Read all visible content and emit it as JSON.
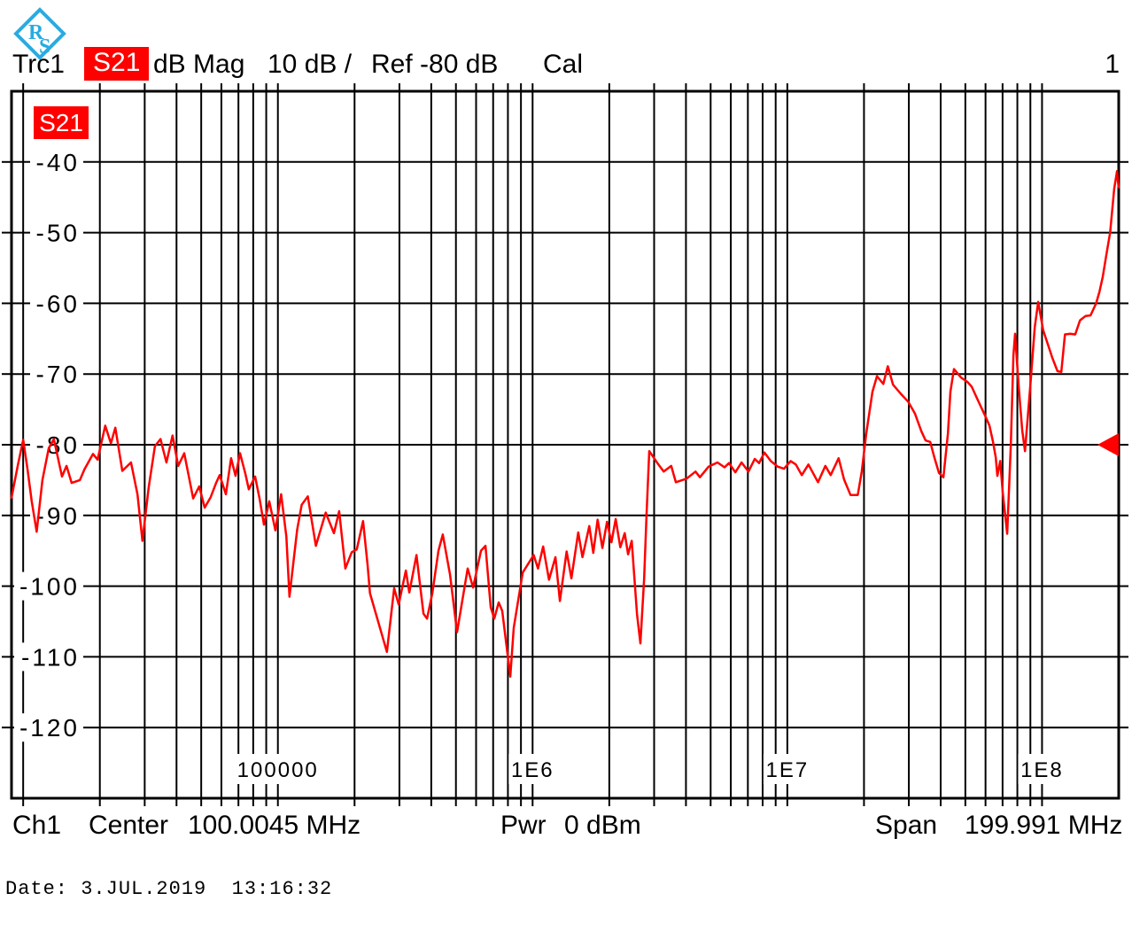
{
  "header": {
    "trace_name": "Trc1",
    "s_parameter": "S21",
    "format": "dB Mag",
    "scale_per_div": "10 dB /",
    "ref_level": "Ref -80 dB",
    "cal_status": "Cal",
    "ref_line_number": "1"
  },
  "plot": {
    "trace_badge": "S21",
    "colors": {
      "trace": "#ff0000",
      "grid": "#000000",
      "badge_bg": "#ff0000",
      "badge_text": "#ffffff",
      "logo_blue": "#29abe2",
      "marker": "#ff0000"
    }
  },
  "footer": {
    "channel": "Ch1",
    "center_label": "Center",
    "center_value": "100.0045 MHz",
    "pwr_label": "Pwr",
    "pwr_value": "0 dBm",
    "span_label": "Span",
    "span_value": "199.991 MHz",
    "date_line": "Date: 3.JUL.2019  13:16:32"
  },
  "chart_data": {
    "type": "line",
    "title": "Trc1 S21 dB Mag 10 dB / Ref -80 dB Cal",
    "x_scale": "log",
    "x_unit": "Hz",
    "xlim": [
      9000,
      200000000
    ],
    "ylim": [
      -130,
      -30
    ],
    "y_div_db": 10,
    "ref_level_db": -80,
    "grid": true,
    "y_ticks": [
      {
        "label": "-40",
        "value": -40
      },
      {
        "label": "-50",
        "value": -50
      },
      {
        "label": "-60",
        "value": -60
      },
      {
        "label": "-70",
        "value": -70
      },
      {
        "label": "-80",
        "value": -80
      },
      {
        "label": "-90",
        "value": -90
      },
      {
        "label": "-100",
        "value": -100
      },
      {
        "label": "-110",
        "value": -110
      },
      {
        "label": "-120",
        "value": -120
      }
    ],
    "x_ticks": [
      {
        "label": "100000",
        "value": 100000
      },
      {
        "label": "1E6",
        "value": 1000000
      },
      {
        "label": "1E7",
        "value": 10000000
      },
      {
        "label": "1E8",
        "value": 100000000
      }
    ],
    "ref_marker": {
      "db": -80,
      "side": "right",
      "shape": "left-triangle",
      "color": "#ff0000"
    },
    "series": [
      {
        "name": "Trc1 S21",
        "color": "#ff0000",
        "points": [
          [
            9000,
            -87.5
          ],
          [
            9520,
            -83
          ],
          [
            10000,
            -79.3
          ],
          [
            10400,
            -83.5
          ],
          [
            10800,
            -88
          ],
          [
            11300,
            -92.3
          ],
          [
            11900,
            -85
          ],
          [
            12600,
            -80.5
          ],
          [
            13200,
            -79.2
          ],
          [
            14200,
            -84.5
          ],
          [
            14800,
            -83
          ],
          [
            15500,
            -85.4
          ],
          [
            16700,
            -85
          ],
          [
            17400,
            -83.5
          ],
          [
            18800,
            -81.3
          ],
          [
            19600,
            -82.1
          ],
          [
            21000,
            -77.3
          ],
          [
            22100,
            -79.8
          ],
          [
            23000,
            -77.6
          ],
          [
            24500,
            -83.7
          ],
          [
            26500,
            -82.5
          ],
          [
            28100,
            -87
          ],
          [
            29400,
            -93.6
          ],
          [
            31100,
            -86
          ],
          [
            32900,
            -80.2
          ],
          [
            34600,
            -79.2
          ],
          [
            36500,
            -82.5
          ],
          [
            38600,
            -78.7
          ],
          [
            40600,
            -83
          ],
          [
            42900,
            -81.2
          ],
          [
            45000,
            -85
          ],
          [
            46500,
            -87.6
          ],
          [
            49100,
            -85.9
          ],
          [
            51600,
            -88.9
          ],
          [
            54500,
            -87.4
          ],
          [
            57200,
            -85.4
          ],
          [
            59100,
            -84.3
          ],
          [
            62500,
            -87
          ],
          [
            65500,
            -81.9
          ],
          [
            68200,
            -84.4
          ],
          [
            71000,
            -81.2
          ],
          [
            74500,
            -84.1
          ],
          [
            76900,
            -86.3
          ],
          [
            81400,
            -84.5
          ],
          [
            84700,
            -87.6
          ],
          [
            88200,
            -91.3
          ],
          [
            92500,
            -88
          ],
          [
            97800,
            -92.1
          ],
          [
            103000,
            -87
          ],
          [
            108000,
            -93
          ],
          [
            111000,
            -101.5
          ],
          [
            119000,
            -92
          ],
          [
            124000,
            -88.5
          ],
          [
            131000,
            -87.3
          ],
          [
            141000,
            -94.3
          ],
          [
            154000,
            -89.6
          ],
          [
            166000,
            -92.5
          ],
          [
            174000,
            -89.4
          ],
          [
            184000,
            -97.5
          ],
          [
            195000,
            -95.2
          ],
          [
            204000,
            -94.8
          ],
          [
            216000,
            -90.8
          ],
          [
            225000,
            -97
          ],
          [
            230000,
            -101
          ],
          [
            268000,
            -109.3
          ],
          [
            286000,
            -100.3
          ],
          [
            298000,
            -102.6
          ],
          [
            318000,
            -97.8
          ],
          [
            328000,
            -100.9
          ],
          [
            350000,
            -95.6
          ],
          [
            373000,
            -103.9
          ],
          [
            385000,
            -104.6
          ],
          [
            404000,
            -101
          ],
          [
            427000,
            -95
          ],
          [
            444000,
            -92.7
          ],
          [
            474000,
            -98.4
          ],
          [
            505000,
            -106.5
          ],
          [
            556000,
            -97.5
          ],
          [
            584000,
            -100.2
          ],
          [
            627000,
            -95
          ],
          [
            653000,
            -94.3
          ],
          [
            685000,
            -103
          ],
          [
            707000,
            -104.6
          ],
          [
            736000,
            -102.3
          ],
          [
            760000,
            -103.5
          ],
          [
            817000,
            -112.8
          ],
          [
            843000,
            -105.9
          ],
          [
            914000,
            -98.1
          ],
          [
            1010000,
            -95.6
          ],
          [
            1050000,
            -97.5
          ],
          [
            1100000,
            -94.4
          ],
          [
            1160000,
            -99.1
          ],
          [
            1230000,
            -95.9
          ],
          [
            1280000,
            -102.1
          ],
          [
            1360000,
            -95.1
          ],
          [
            1420000,
            -98.9
          ],
          [
            1510000,
            -92.4
          ],
          [
            1570000,
            -95.9
          ],
          [
            1670000,
            -91.5
          ],
          [
            1730000,
            -95.3
          ],
          [
            1800000,
            -90.6
          ],
          [
            1880000,
            -94.6
          ],
          [
            1960000,
            -90.9
          ],
          [
            2040000,
            -93.8
          ],
          [
            2120000,
            -90.5
          ],
          [
            2210000,
            -94.5
          ],
          [
            2300000,
            -92.5
          ],
          [
            2370000,
            -95.5
          ],
          [
            2450000,
            -93.6
          ],
          [
            2570000,
            -104
          ],
          [
            2650000,
            -108.1
          ],
          [
            2740000,
            -99
          ],
          [
            2800000,
            -90
          ],
          [
            2870000,
            -80.9
          ],
          [
            3090000,
            -82.6
          ],
          [
            3270000,
            -83.8
          ],
          [
            3500000,
            -83
          ],
          [
            3650000,
            -85.3
          ],
          [
            4020000,
            -84.8
          ],
          [
            4360000,
            -83.8
          ],
          [
            4540000,
            -84.6
          ],
          [
            4910000,
            -83.1
          ],
          [
            5320000,
            -82.5
          ],
          [
            5670000,
            -83.2
          ],
          [
            5900000,
            -82.6
          ],
          [
            6250000,
            -83.9
          ],
          [
            6610000,
            -82.5
          ],
          [
            7040000,
            -83.8
          ],
          [
            7450000,
            -82
          ],
          [
            7750000,
            -82.6
          ],
          [
            8130000,
            -81.1
          ],
          [
            8610000,
            -82.3
          ],
          [
            9170000,
            -83.1
          ],
          [
            9700000,
            -83.4
          ],
          [
            10300000,
            -82.3
          ],
          [
            10800000,
            -82.8
          ],
          [
            11400000,
            -84.3
          ],
          [
            12100000,
            -82.8
          ],
          [
            13200000,
            -85.3
          ],
          [
            14100000,
            -83
          ],
          [
            14800000,
            -84.3
          ],
          [
            15900000,
            -81.9
          ],
          [
            16700000,
            -84.9
          ],
          [
            17700000,
            -87.1
          ],
          [
            18900000,
            -87.1
          ],
          [
            19600000,
            -83.8
          ],
          [
            20400000,
            -78.5
          ],
          [
            21600000,
            -72.5
          ],
          [
            22500000,
            -70.3
          ],
          [
            23800000,
            -71.4
          ],
          [
            24800000,
            -68.9
          ],
          [
            26000000,
            -71.5
          ],
          [
            27900000,
            -72.8
          ],
          [
            29800000,
            -73.9
          ],
          [
            31700000,
            -75.6
          ],
          [
            33600000,
            -78.1
          ],
          [
            34900000,
            -79.4
          ],
          [
            36400000,
            -79.6
          ],
          [
            37800000,
            -81.8
          ],
          [
            39400000,
            -84
          ],
          [
            41000000,
            -84.6
          ],
          [
            42700000,
            -78.4
          ],
          [
            43700000,
            -72.5
          ],
          [
            45100000,
            -69.3
          ],
          [
            48100000,
            -70.5
          ],
          [
            50900000,
            -71.1
          ],
          [
            53000000,
            -71.8
          ],
          [
            56500000,
            -74
          ],
          [
            59800000,
            -75.9
          ],
          [
            62200000,
            -77.3
          ],
          [
            64200000,
            -79.6
          ],
          [
            65800000,
            -81.8
          ],
          [
            66800000,
            -84.4
          ],
          [
            68500000,
            -82.3
          ],
          [
            70100000,
            -86.8
          ],
          [
            73000000,
            -92.6
          ],
          [
            75400000,
            -80
          ],
          [
            77200000,
            -67.4
          ],
          [
            78400000,
            -64.3
          ],
          [
            81000000,
            -71.8
          ],
          [
            83600000,
            -78
          ],
          [
            85700000,
            -80.9
          ],
          [
            89900000,
            -71.8
          ],
          [
            93600000,
            -63.4
          ],
          [
            96600000,
            -59.8
          ],
          [
            101000000,
            -63.8
          ],
          [
            105000000,
            -65.6
          ],
          [
            110000000,
            -67.8
          ],
          [
            115000000,
            -69.6
          ],
          [
            119000000,
            -69.7
          ],
          [
            123000000,
            -64.4
          ],
          [
            129000000,
            -64.3
          ],
          [
            135000000,
            -64.4
          ],
          [
            141000000,
            -62.4
          ],
          [
            148000000,
            -61.8
          ],
          [
            155000000,
            -61.7
          ],
          [
            163000000,
            -60
          ],
          [
            168000000,
            -58.4
          ],
          [
            173000000,
            -56.3
          ],
          [
            179000000,
            -53.1
          ],
          [
            185000000,
            -50
          ],
          [
            189000000,
            -46.5
          ],
          [
            192000000,
            -43.8
          ],
          [
            197000000,
            -41.3
          ],
          [
            199000000,
            -43
          ],
          [
            200000000,
            -43.6
          ]
        ]
      }
    ]
  }
}
